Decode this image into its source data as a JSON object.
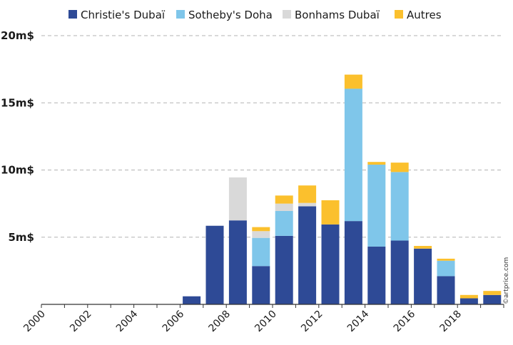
{
  "chart_data": {
    "type": "bar",
    "stacked": true,
    "categories": [
      "2000",
      "2001",
      "2002",
      "2003",
      "2004",
      "2005",
      "2006",
      "2007",
      "2008",
      "2009",
      "2010",
      "2011",
      "2012",
      "2013",
      "2014",
      "2015",
      "2016",
      "2017",
      "2018",
      "2019"
    ],
    "x_tick_labels": [
      "2000",
      "2002",
      "2004",
      "2006",
      "2008",
      "2010",
      "2012",
      "2014",
      "2016",
      "2018"
    ],
    "series": [
      {
        "name": "Christie's Dubaï",
        "color": "#2e4a96",
        "values": [
          0,
          0,
          0,
          0,
          0,
          0,
          0.6,
          5.85,
          6.25,
          2.85,
          5.1,
          7.3,
          5.95,
          6.2,
          4.3,
          4.75,
          4.15,
          2.1,
          0.45,
          0.7
        ]
      },
      {
        "name": "Sotheby's Doha",
        "color": "#7fc6ea",
        "values": [
          0,
          0,
          0,
          0,
          0,
          0,
          0,
          0,
          0,
          2.1,
          1.85,
          0,
          0,
          9.85,
          6.1,
          5.1,
          0,
          1.15,
          0,
          0
        ]
      },
      {
        "name": "Bonhams Dubaï",
        "color": "#d9d9d9",
        "values": [
          0,
          0,
          0,
          0,
          0,
          0,
          0,
          0,
          3.2,
          0.5,
          0.55,
          0.25,
          0,
          0,
          0,
          0,
          0,
          0,
          0,
          0
        ]
      },
      {
        "name": "Autres",
        "color": "#fbc02d",
        "values": [
          0,
          0,
          0,
          0,
          0,
          0,
          0,
          0,
          0,
          0.3,
          0.6,
          1.3,
          1.8,
          1.05,
          0.2,
          0.7,
          0.2,
          0.15,
          0.25,
          0.3
        ]
      }
    ],
    "y_ticks": [
      {
        "value": 5,
        "label": "5m$"
      },
      {
        "value": 10,
        "label": "10m$"
      },
      {
        "value": 15,
        "label": "15m$"
      },
      {
        "value": 20,
        "label": "20m$"
      }
    ],
    "ylim": [
      0,
      20
    ],
    "ylabel": "",
    "xlabel": "",
    "title": "",
    "grid": "horizontal dashed",
    "legend_position": "top",
    "credit": "©artprice.com"
  }
}
